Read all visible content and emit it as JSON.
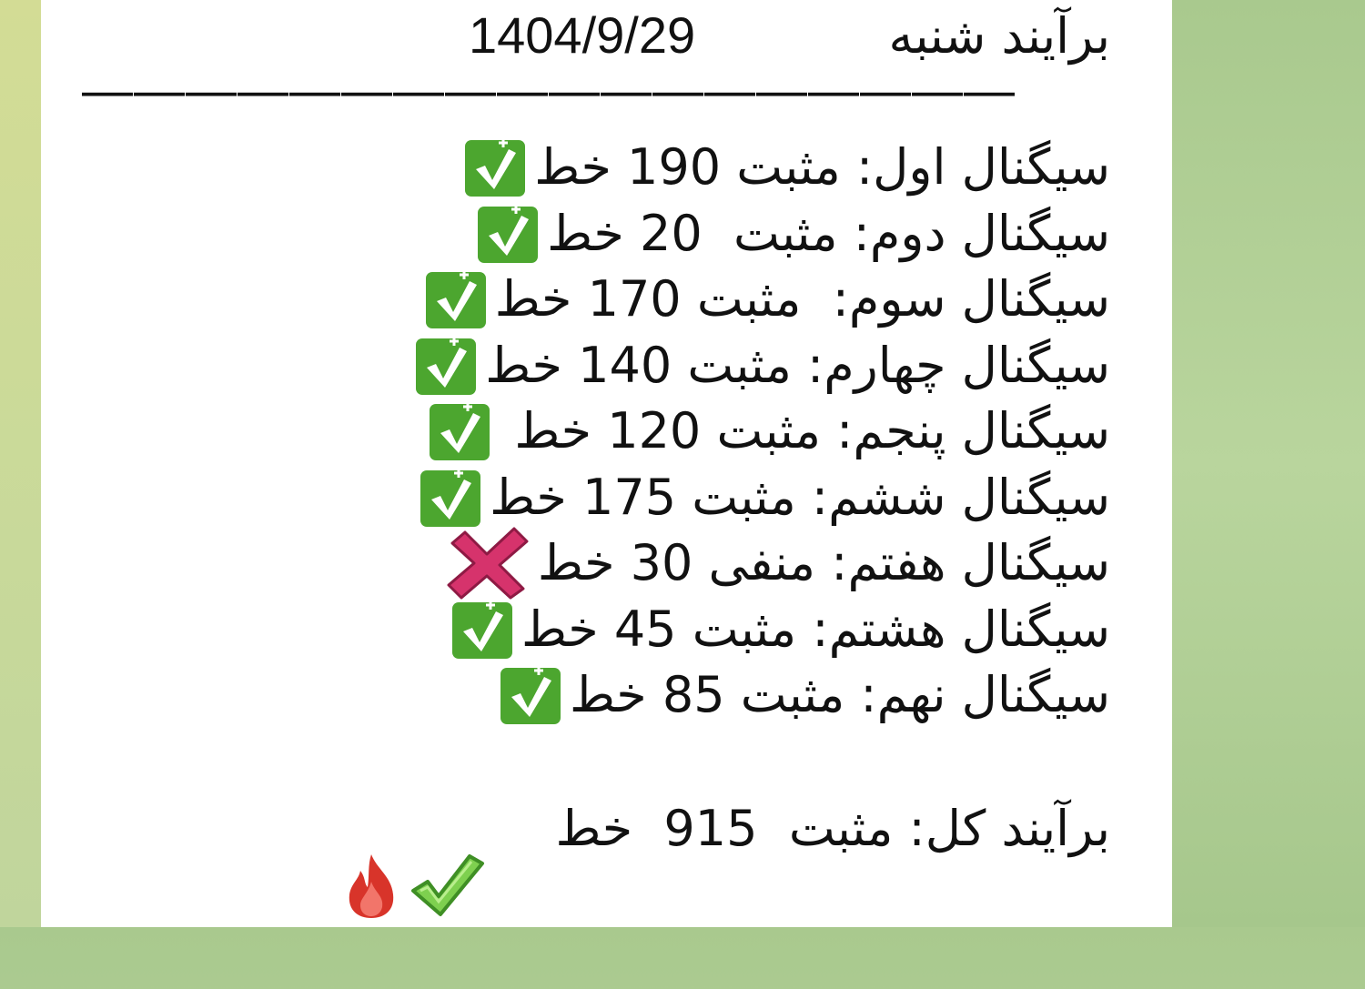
{
  "header": {
    "title": "برآیند شنبه",
    "date": "1404/9/29",
    "divider": "——————————————————"
  },
  "signals": [
    {
      "text": "سیگنال اول: مثبت 190 خط",
      "result": "positive",
      "icon": "check-box-icon"
    },
    {
      "text": "سیگنال دوم: مثبت  20 خط",
      "result": "positive",
      "icon": "check-box-icon"
    },
    {
      "text": "سیگنال سوم:  مثبت 170 خط",
      "result": "positive",
      "icon": "check-box-icon"
    },
    {
      "text": "سیگنال چهارم: مثبت 140 خط",
      "result": "positive",
      "icon": "check-box-icon"
    },
    {
      "text": "سیگنال پنجم: مثبت 120 خط ",
      "result": "positive",
      "icon": "check-box-icon"
    },
    {
      "text": "سیگنال ششم: مثبت 175 خط",
      "result": "positive",
      "icon": "check-box-icon"
    },
    {
      "text": "سیگنال هفتم: منفی 30 خط",
      "result": "negative",
      "icon": "cross-mark-icon"
    },
    {
      "text": "سیگنال هشتم: مثبت 45 خط",
      "result": "positive",
      "icon": "check-box-icon"
    },
    {
      "text": "سیگنال نهم: مثبت 85 خط",
      "result": "positive",
      "icon": "check-box-icon"
    }
  ],
  "total": {
    "text": "برآیند کل: مثبت  915  خط",
    "icons": [
      "check-mark-icon",
      "fire-icon"
    ]
  },
  "colors": {
    "check_box": "#4ca62f",
    "cross": "#d6336c",
    "bubble": "#ffffff",
    "background": "#b3d197"
  }
}
